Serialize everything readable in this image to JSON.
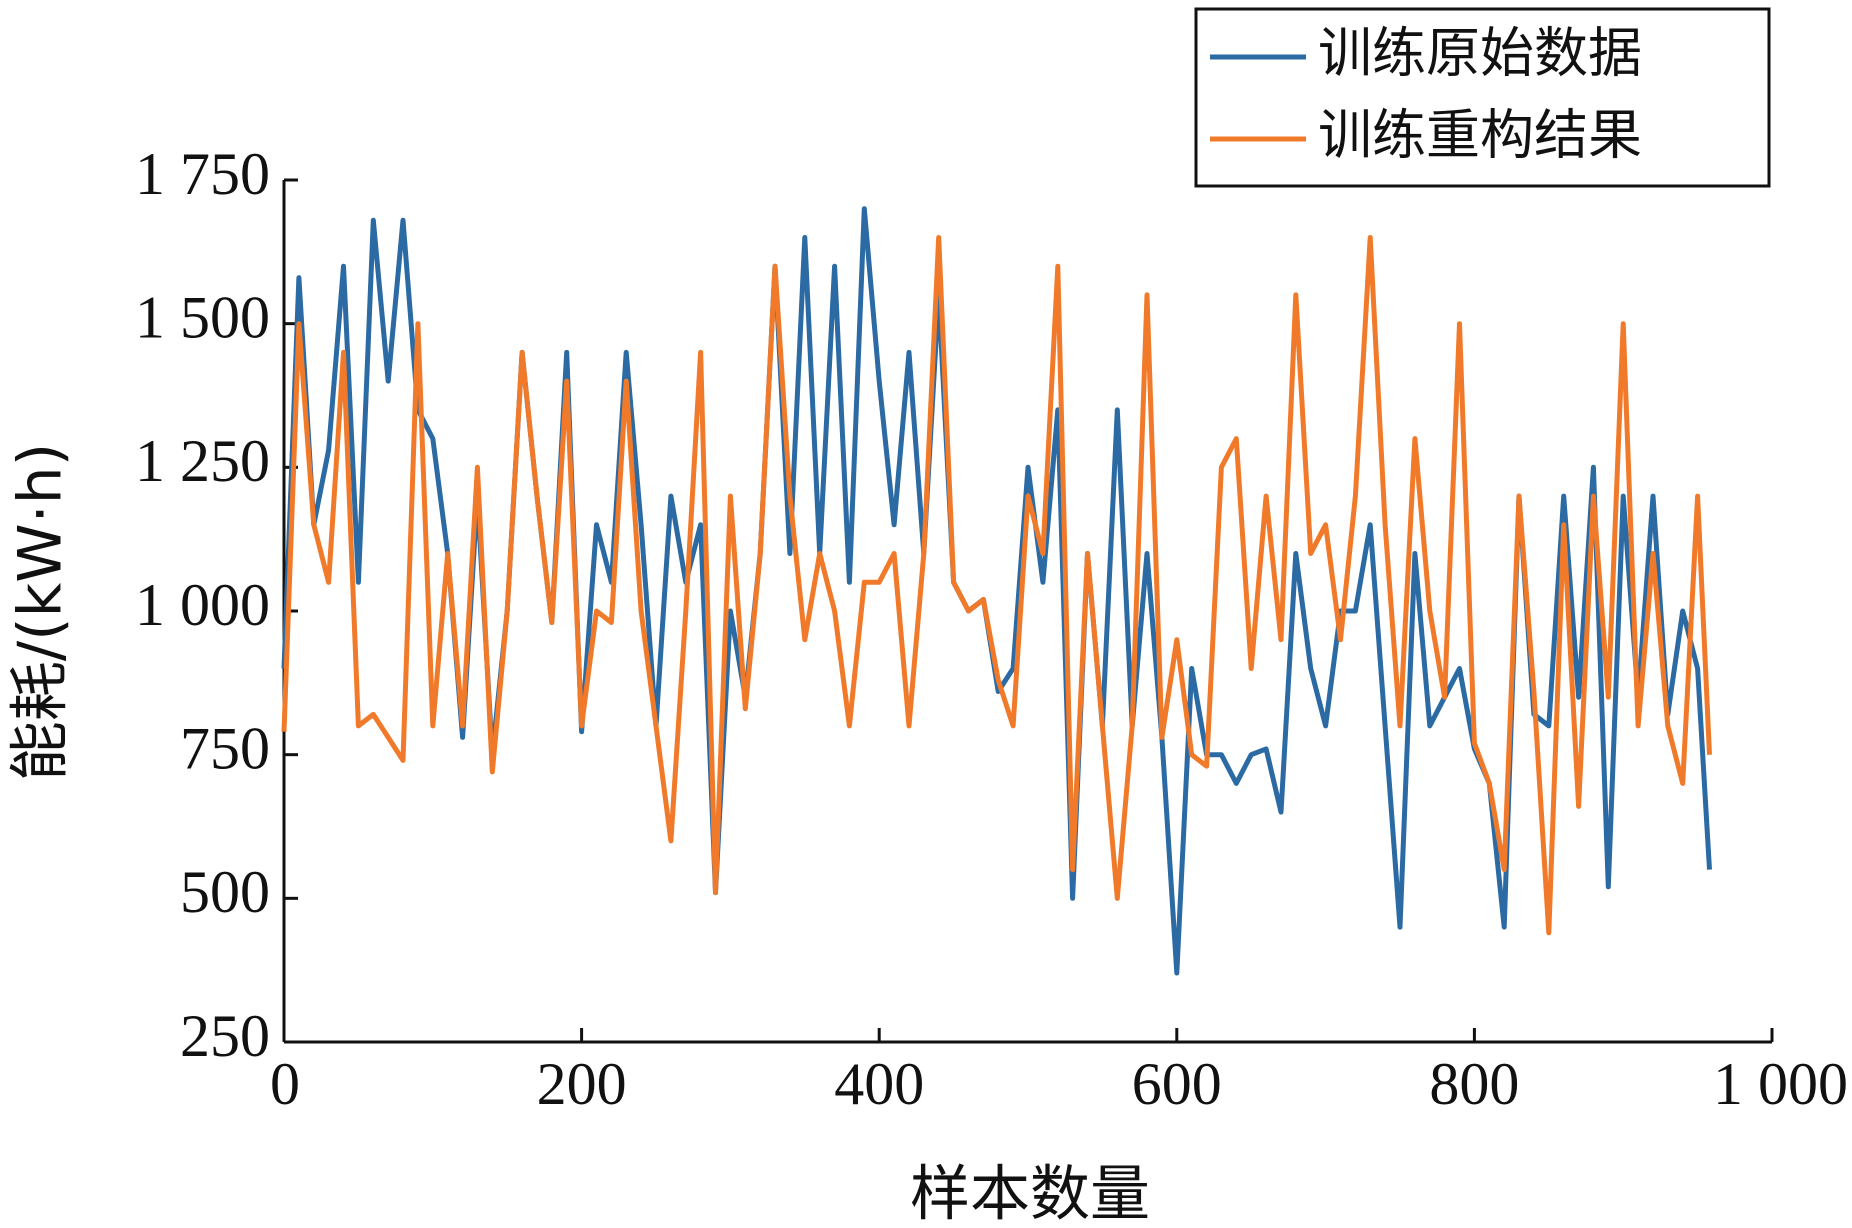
{
  "chart_data": {
    "type": "line",
    "xlabel": "样本数量",
    "ylabel": "能耗/(kW·h)",
    "x": [
      0,
      10,
      20,
      30,
      40,
      50,
      60,
      70,
      80,
      90,
      100,
      110,
      120,
      130,
      140,
      150,
      160,
      170,
      180,
      190,
      200,
      210,
      220,
      230,
      240,
      250,
      260,
      270,
      280,
      290,
      300,
      310,
      320,
      330,
      340,
      350,
      360,
      370,
      380,
      390,
      400,
      410,
      420,
      430,
      440,
      450,
      460,
      470,
      480,
      490,
      500,
      510,
      520,
      530,
      540,
      550,
      560,
      570,
      580,
      590,
      600,
      610,
      620,
      630,
      640,
      650,
      660,
      670,
      680,
      690,
      700,
      710,
      720,
      730,
      740,
      750,
      760,
      770,
      780,
      790,
      800,
      810,
      820,
      830,
      840,
      850,
      860,
      870,
      880,
      890,
      900,
      910,
      920,
      930,
      940,
      950,
      958
    ],
    "series": [
      {
        "name": "训练原始数据",
        "color": "#2b6aa3",
        "values": [
          900,
          1580,
          1150,
          1280,
          1600,
          1050,
          1680,
          1400,
          1680,
          1350,
          1300,
          1100,
          780,
          1200,
          750,
          1000,
          1450,
          1200,
          980,
          1450,
          790,
          1150,
          1050,
          1450,
          1150,
          800,
          1200,
          1050,
          1150,
          510,
          1000,
          850,
          1100,
          1600,
          1100,
          1650,
          1100,
          1600,
          1050,
          1700,
          1400,
          1150,
          1450,
          1100,
          1550,
          1050,
          1000,
          1020,
          860,
          900,
          1250,
          1050,
          1350,
          500,
          1100,
          800,
          1350,
          800,
          1100,
          780,
          370,
          900,
          750,
          750,
          700,
          750,
          760,
          650,
          1100,
          900,
          800,
          1000,
          1000,
          1150,
          800,
          450,
          1100,
          800,
          850,
          900,
          760,
          700,
          450,
          1200,
          820,
          800,
          1200,
          850,
          1250,
          520,
          1200,
          850,
          1200,
          820,
          1000,
          900,
          550
        ]
      },
      {
        "name": "训练重构结果",
        "color": "#f07a2a",
        "values": [
          790,
          1500,
          1150,
          1050,
          1450,
          800,
          820,
          780,
          740,
          1500,
          800,
          1100,
          800,
          1250,
          720,
          1000,
          1450,
          1200,
          980,
          1400,
          800,
          1000,
          980,
          1400,
          1000,
          800,
          600,
          1000,
          1450,
          510,
          1200,
          830,
          1100,
          1600,
          1200,
          950,
          1100,
          1000,
          800,
          1050,
          1050,
          1100,
          800,
          1100,
          1650,
          1050,
          1000,
          1020,
          880,
          800,
          1200,
          1100,
          1600,
          550,
          1100,
          800,
          500,
          800,
          1550,
          780,
          950,
          750,
          730,
          1250,
          1300,
          900,
          1200,
          950,
          1550,
          1100,
          1150,
          950,
          1200,
          1650,
          1150,
          800,
          1300,
          1000,
          850,
          1500,
          770,
          700,
          550,
          1200,
          860,
          440,
          1150,
          660,
          1200,
          850,
          1500,
          800,
          1100,
          800,
          700,
          1200,
          750
        ]
      }
    ],
    "xlim": [
      0,
      1000
    ],
    "xticks": [
      0,
      200,
      400,
      600,
      800,
      {
        "value": 1000,
        "label": "1 000"
      }
    ],
    "ylim": [
      250,
      1750
    ],
    "yticks": [
      250,
      500,
      750,
      {
        "value": 1000,
        "label": "1 000"
      },
      {
        "value": 1250,
        "label": "1 250"
      },
      {
        "value": 1500,
        "label": "1 500"
      },
      {
        "value": 1750,
        "label": "1 750"
      }
    ],
    "legend": "upper right"
  }
}
